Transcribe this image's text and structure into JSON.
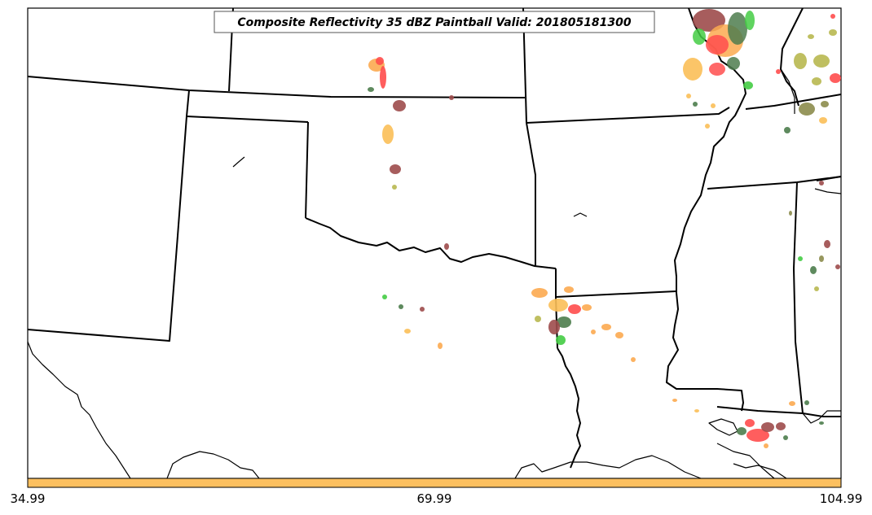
{
  "title": "Composite Reflectivity 35 dBZ Paintball Valid: 201805181300",
  "colorbar": {
    "color": "#fcc060",
    "ticks": [
      "34.99",
      "69.99",
      "104.99"
    ]
  },
  "colors": {
    "red": "#ff4d4d",
    "orange": "#fcaa50",
    "light_orange": "#fbbf58",
    "brown": "#9d4b4b",
    "dark_green": "#4d7d4d",
    "green": "#44cc44",
    "olive": "#b8b850",
    "dark_olive": "#8c8c4c"
  }
}
